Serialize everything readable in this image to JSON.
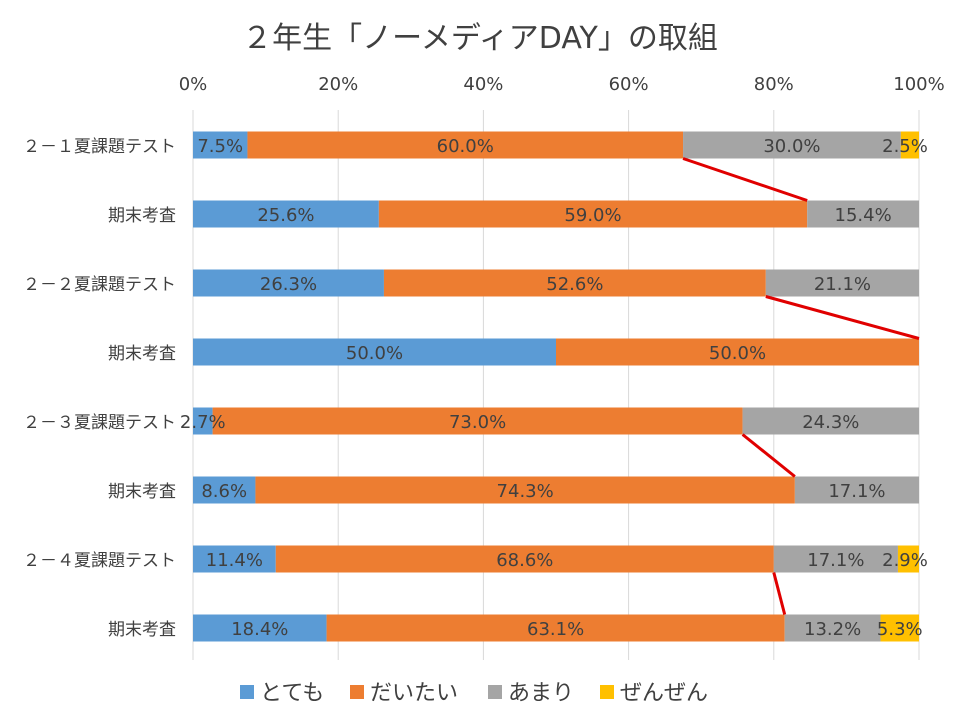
{
  "chart_data": {
    "type": "bar",
    "orientation": "horizontal",
    "stacked": "percent",
    "title": "２年生「ノーメディアDAY」の取組",
    "xlim": [
      0,
      100
    ],
    "x_ticks": [
      "0%",
      "20%",
      "40%",
      "60%",
      "80%",
      "100%"
    ],
    "grid": true,
    "legend_position": "bottom",
    "categories": [
      "２－１夏課題テスト",
      "期末考査",
      "２－２夏課題テスト",
      "期末考査",
      "２－３夏課題テスト",
      "期末考査",
      "２－４夏課題テスト",
      "期末考査"
    ],
    "series": [
      {
        "name": "とても",
        "color": "#5B9BD5",
        "values": [
          7.5,
          25.6,
          26.3,
          50.0,
          2.7,
          8.6,
          11.4,
          18.4
        ],
        "labels": [
          "7.5%",
          "25.6%",
          "26.3%",
          "50.0%",
          "2.7%",
          "8.6%",
          "11.4%",
          "18.4%"
        ]
      },
      {
        "name": "だいたい",
        "color": "#ED7D31",
        "values": [
          60.0,
          59.0,
          52.6,
          50.0,
          73.0,
          74.3,
          68.6,
          63.1
        ],
        "labels": [
          "60.0%",
          "59.0%",
          "52.6%",
          "50.0%",
          "73.0%",
          "74.3%",
          "68.6%",
          "63.1%"
        ]
      },
      {
        "name": "あまり",
        "color": "#A5A5A5",
        "values": [
          30.0,
          15.4,
          21.1,
          0,
          24.3,
          17.1,
          17.1,
          13.2
        ],
        "labels": [
          "30.0%",
          "15.4%",
          "21.1%",
          "",
          "24.3%",
          "17.1%",
          "17.1%",
          "13.2%"
        ]
      },
      {
        "name": "ぜんぜん",
        "color": "#FFC000",
        "values": [
          2.5,
          0,
          0,
          0,
          0,
          0,
          2.9,
          5.3
        ],
        "labels": [
          "2.5%",
          "",
          "",
          "",
          "",
          "",
          "2.9%",
          "5.3%"
        ]
      }
    ],
    "annotations": {
      "type": "connector-lines",
      "color": "#E00000",
      "pairs": [
        [
          0,
          1
        ],
        [
          2,
          3
        ],
        [
          4,
          5
        ],
        [
          6,
          7
        ]
      ],
      "connects": "cumulative boundary of 「だいたい」 between paired bars"
    }
  }
}
